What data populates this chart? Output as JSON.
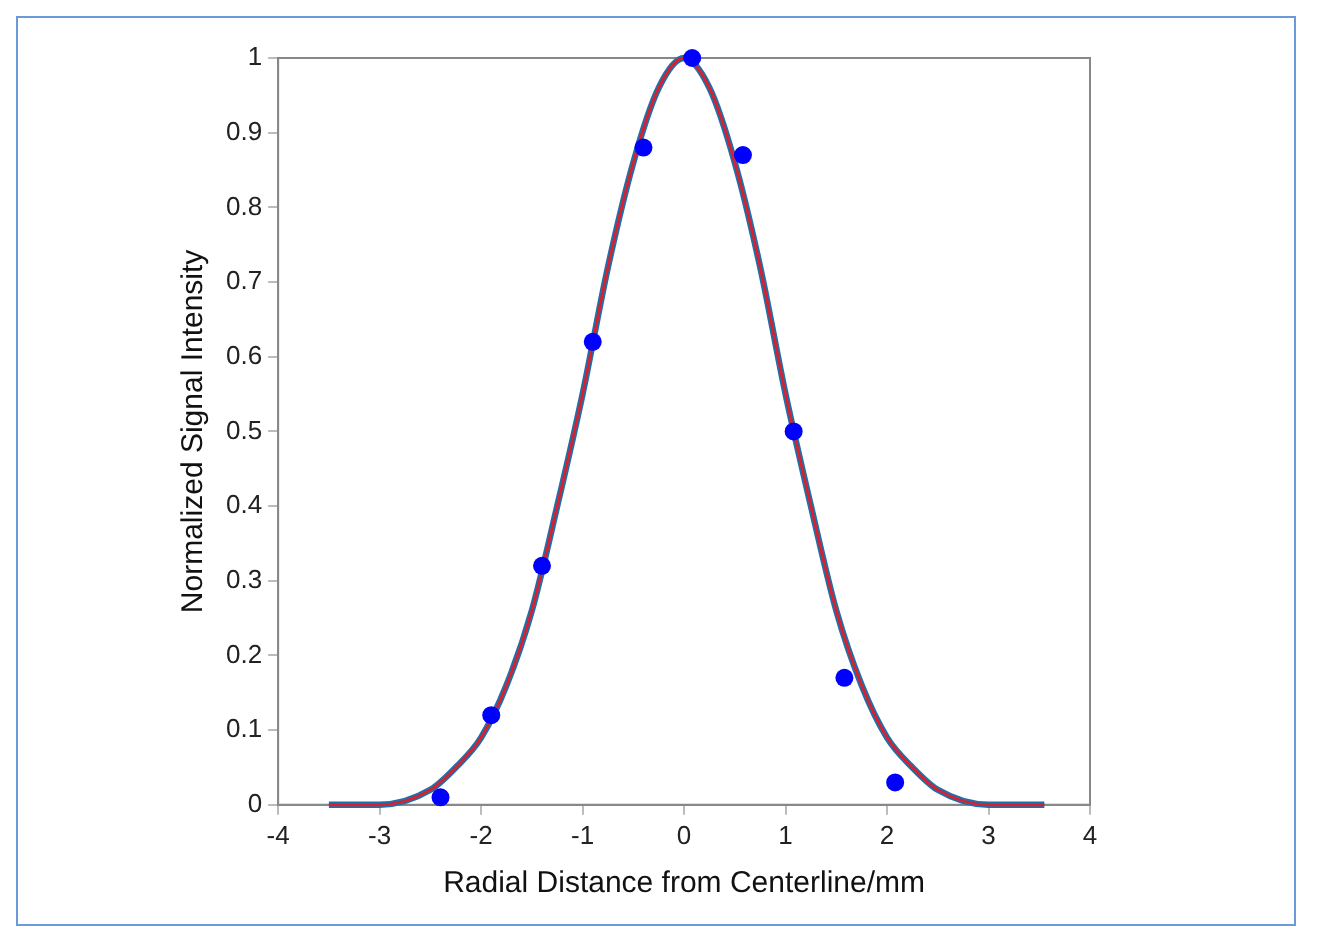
{
  "chart_data": {
    "type": "scatter",
    "xlabel": "Radial Distance from Centerline/mm",
    "ylabel": "Normalized Signal Intensity",
    "xlim": [
      -4,
      4
    ],
    "xticks": [
      -4,
      -3,
      -2,
      -1,
      0,
      1,
      2,
      3,
      4
    ],
    "ylim": [
      0,
      1
    ],
    "yticks": [
      0,
      0.1,
      0.2,
      0.3,
      0.4,
      0.5,
      0.6,
      0.7,
      0.8,
      0.9,
      1
    ],
    "grid": false,
    "legend": false,
    "marker": "circle",
    "series": [
      {
        "type": "line",
        "color": "#1f6fa8",
        "marker": "none",
        "x": [
          -3.5,
          -3,
          -2.5,
          -2.25,
          -2,
          -1.75,
          -1.5,
          -1.25,
          -1,
          -0.75,
          -0.5,
          -0.25,
          0,
          0.25,
          0.5,
          0.75,
          1,
          1.25,
          1.5,
          1.75,
          2,
          2.25,
          2.5,
          3,
          3.55
        ],
        "values": [
          0,
          0,
          0.02,
          0.05,
          0.09,
          0.16,
          0.26,
          0.4,
          0.55,
          0.72,
          0.86,
          0.96,
          1,
          0.96,
          0.86,
          0.72,
          0.55,
          0.4,
          0.26,
          0.16,
          0.09,
          0.05,
          0.02,
          0,
          0
        ]
      },
      {
        "type": "line",
        "color": "#d9202e",
        "marker": "none",
        "x": [
          -3.5,
          -3,
          -2.5,
          -2.25,
          -2,
          -1.75,
          -1.5,
          -1.25,
          -1,
          -0.75,
          -0.5,
          -0.25,
          0,
          0.25,
          0.5,
          0.75,
          1,
          1.25,
          1.5,
          1.75,
          2,
          2.25,
          2.5,
          3,
          3.55
        ],
        "values": [
          0,
          0,
          0.02,
          0.05,
          0.09,
          0.16,
          0.26,
          0.4,
          0.55,
          0.72,
          0.86,
          0.96,
          1,
          0.96,
          0.86,
          0.72,
          0.55,
          0.4,
          0.26,
          0.16,
          0.09,
          0.05,
          0.02,
          0,
          0
        ]
      },
      {
        "type": "scatter",
        "color": "#0000ff",
        "x": [
          -2.4,
          -1.9,
          -1.4,
          -0.9,
          -0.4,
          0.08,
          0.58,
          1.08,
          1.58,
          2.08
        ],
        "values": [
          0.01,
          0.12,
          0.32,
          0.62,
          0.88,
          1,
          0.87,
          0.5,
          0.17,
          0.03
        ]
      }
    ]
  }
}
